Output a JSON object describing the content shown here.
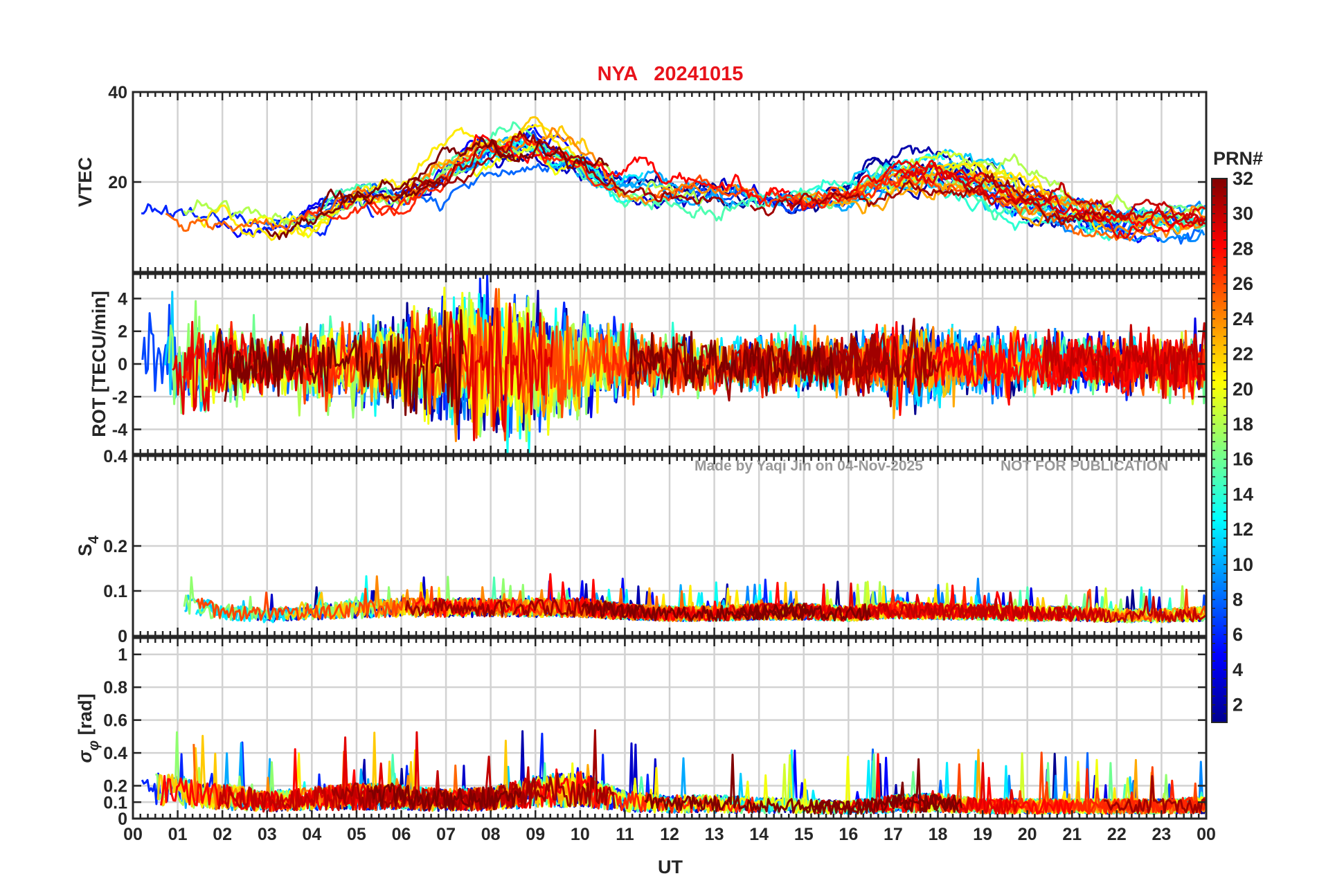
{
  "chart_data": {
    "type": "line",
    "title": "NYA   20241015",
    "station": "NYA",
    "date": "20241015",
    "xlabel": "UT",
    "x_ticks": [
      "00",
      "01",
      "02",
      "03",
      "04",
      "05",
      "06",
      "07",
      "08",
      "09",
      "10",
      "11",
      "12",
      "13",
      "14",
      "15",
      "16",
      "17",
      "18",
      "19",
      "20",
      "21",
      "22",
      "23",
      "00"
    ],
    "xlim_hours": [
      0,
      24
    ],
    "watermark": {
      "left": "Made by Yaqi Jin on 04-Nov-2025",
      "right": "NOT FOR PUBLICATION"
    },
    "colorbar": {
      "title": "PRN#",
      "ticks": [
        "2",
        "4",
        "6",
        "8",
        "10",
        "12",
        "14",
        "16",
        "18",
        "20",
        "22",
        "24",
        "26",
        "28",
        "30",
        "32"
      ],
      "range": [
        1,
        32
      ],
      "colormap": [
        "#00008f",
        "#0000ff",
        "#0080ff",
        "#00ffff",
        "#80ff80",
        "#ffff00",
        "#ff8000",
        "#ff0000",
        "#800000"
      ]
    },
    "panels": [
      {
        "id": "vtec",
        "ylabel": "VTEC",
        "ylim": [
          0,
          40
        ],
        "y_ticks": [
          "40",
          "20"
        ],
        "y_tick_values": [
          40,
          20
        ],
        "grid": true,
        "activity_profile_hours": [
          0,
          1,
          2,
          3,
          4,
          5,
          6,
          7,
          8,
          9,
          10,
          11,
          12,
          13,
          14,
          15,
          16,
          17,
          18,
          19,
          20,
          21,
          22,
          23,
          24
        ],
        "activity_profile_values": [
          14,
          13,
          11,
          10,
          13,
          16,
          17,
          22,
          27,
          28,
          24,
          19,
          18,
          18,
          17,
          16,
          17,
          20,
          21,
          19,
          16,
          13,
          11,
          11,
          12
        ]
      },
      {
        "id": "rot",
        "ylabel": "ROT [TECU/min]",
        "ylim": [
          -5.5,
          5.5
        ],
        "y_ticks": [
          "4",
          "2",
          "0",
          "-2",
          "-4"
        ],
        "y_tick_values": [
          4,
          2,
          0,
          -2,
          -4
        ],
        "grid": true,
        "activity_profile_hours": [
          0,
          1,
          2,
          3,
          4,
          5,
          6,
          7,
          8,
          9,
          10,
          11,
          12,
          13,
          14,
          15,
          16,
          17,
          18,
          19,
          20,
          21,
          22,
          23,
          24
        ],
        "activity_profile_values": [
          2.2,
          2.6,
          1.8,
          1.4,
          1.6,
          1.8,
          2.0,
          3.0,
          3.2,
          3.0,
          2.4,
          1.5,
          1.3,
          1.2,
          1.3,
          1.2,
          1.2,
          1.8,
          1.6,
          1.4,
          1.4,
          1.2,
          1.3,
          1.4,
          1.6
        ]
      },
      {
        "id": "s4",
        "ylabel_main": "S",
        "ylabel_sub": "4",
        "ylim": [
          0,
          0.4
        ],
        "y_ticks": [
          "0.4",
          "0.2",
          "0.1",
          "0"
        ],
        "y_tick_values": [
          0.4,
          0.2,
          0.1,
          0
        ],
        "grid": true,
        "activity_profile_hours": [
          0,
          1,
          2,
          3,
          4,
          5,
          6,
          7,
          8,
          9,
          10,
          11,
          12,
          13,
          14,
          15,
          16,
          17,
          18,
          19,
          20,
          21,
          22,
          23,
          24
        ],
        "activity_profile_values": [
          0.07,
          0.08,
          0.06,
          0.05,
          0.06,
          0.065,
          0.07,
          0.07,
          0.07,
          0.07,
          0.07,
          0.06,
          0.055,
          0.055,
          0.06,
          0.06,
          0.055,
          0.065,
          0.06,
          0.06,
          0.055,
          0.055,
          0.05,
          0.05,
          0.055
        ]
      },
      {
        "id": "sigphi",
        "ylabel_main": "σ",
        "ylabel_sub": "φ",
        "ylabel_rest": " [rad]",
        "ylim": [
          0,
          1.1
        ],
        "y_ticks": [
          "1",
          "0.8",
          "0.6",
          "0.4",
          "0.2",
          "0.1",
          "0"
        ],
        "y_tick_values": [
          1,
          0.8,
          0.6,
          0.4,
          0.2,
          0.1,
          0
        ],
        "grid": true,
        "activity_profile_hours": [
          0,
          1,
          2,
          3,
          4,
          5,
          6,
          7,
          8,
          9,
          10,
          11,
          12,
          13,
          14,
          15,
          16,
          17,
          18,
          19,
          20,
          21,
          22,
          23,
          24
        ],
        "activity_profile_values": [
          0.25,
          0.22,
          0.18,
          0.14,
          0.16,
          0.18,
          0.17,
          0.15,
          0.16,
          0.22,
          0.24,
          0.14,
          0.12,
          0.12,
          0.11,
          0.1,
          0.09,
          0.12,
          0.13,
          0.1,
          0.1,
          0.1,
          0.1,
          0.1,
          0.11
        ]
      }
    ]
  }
}
